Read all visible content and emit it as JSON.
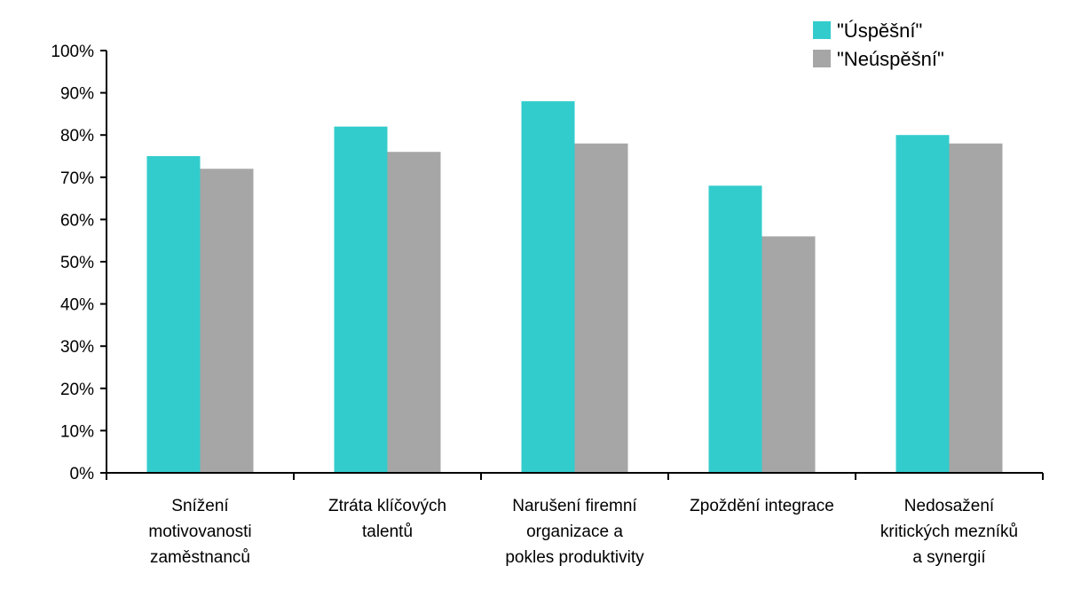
{
  "chart_data": {
    "type": "bar",
    "title": "",
    "xlabel": "",
    "ylabel": "",
    "ylim": [
      0,
      100
    ],
    "y_ticks": [
      "0%",
      "10%",
      "20%",
      "30%",
      "40%",
      "50%",
      "60%",
      "70%",
      "80%",
      "90%",
      "100%"
    ],
    "grid": false,
    "legend_position": "top-right",
    "categories": [
      [
        "Snížení",
        "motivovanosti",
        "zaměstnanců"
      ],
      [
        "Ztráta klíčových",
        "talentů"
      ],
      [
        "Narušení firemní",
        "organizace a",
        "pokles produktivity"
      ],
      [
        "Zpoždění integrace"
      ],
      [
        "Nedosažení",
        "kritických mezníků",
        "a synergií"
      ]
    ],
    "series": [
      {
        "name": "\"Úspěšní\"",
        "color": "#33CCCC",
        "values": [
          75,
          82,
          88,
          68,
          80
        ]
      },
      {
        "name": "\"Neúspěšní\"",
        "color": "#A6A6A6",
        "values": [
          72,
          76,
          78,
          56,
          78
        ]
      }
    ]
  }
}
